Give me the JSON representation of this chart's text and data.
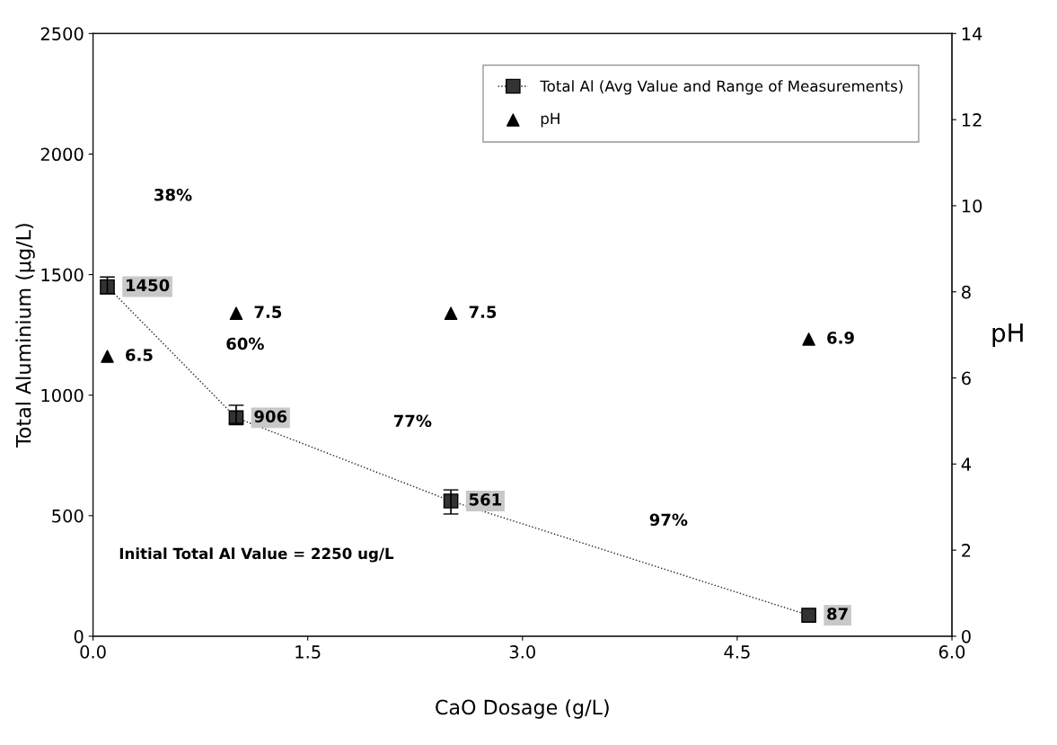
{
  "chart_data": {
    "type": "line",
    "xlabel": "CaO Dosage (g/L)",
    "ylabel": "Total Aluminium (μg/L)",
    "y2label": "pH",
    "x": [
      0.1,
      1.0,
      2.5,
      5.0
    ],
    "series": [
      {
        "name": "Total Al (Avg Value and Range of Measurements)",
        "color": "#222222",
        "values": [
          1450,
          906,
          561,
          87
        ],
        "errors": [
          [
            1420,
            1490
          ],
          [
            883,
            958
          ],
          [
            507,
            607
          ],
          null
        ],
        "marker": "square",
        "line_style": "dotted"
      },
      {
        "name": "pH",
        "type": "scatter",
        "axis": "y2",
        "color": "#000000",
        "values": [
          6.5,
          7.5,
          7.5,
          6.9
        ],
        "marker": "triangle"
      }
    ],
    "xlim": [
      0,
      6
    ],
    "xticks": [
      {
        "value": 0,
        "label": "0.0"
      },
      {
        "value": 1.5,
        "label": "1.5"
      },
      {
        "value": 3,
        "label": "3.0"
      },
      {
        "value": 4.5,
        "label": "4.5"
      },
      {
        "value": 6,
        "label": "6.0"
      }
    ],
    "ylim": [
      0,
      2500
    ],
    "yticks": [
      0,
      500,
      1000,
      1500,
      2000,
      2500
    ],
    "y2lim": [
      0,
      14
    ],
    "y2ticks": [
      0,
      2,
      4,
      6,
      8,
      10,
      12,
      14
    ],
    "data_labels": true,
    "legend": "top right",
    "grid": false,
    "annotations": [
      "38%",
      "60%",
      "77%",
      "97%",
      "Initial Total Al Value = 2250 ug/L"
    ]
  }
}
